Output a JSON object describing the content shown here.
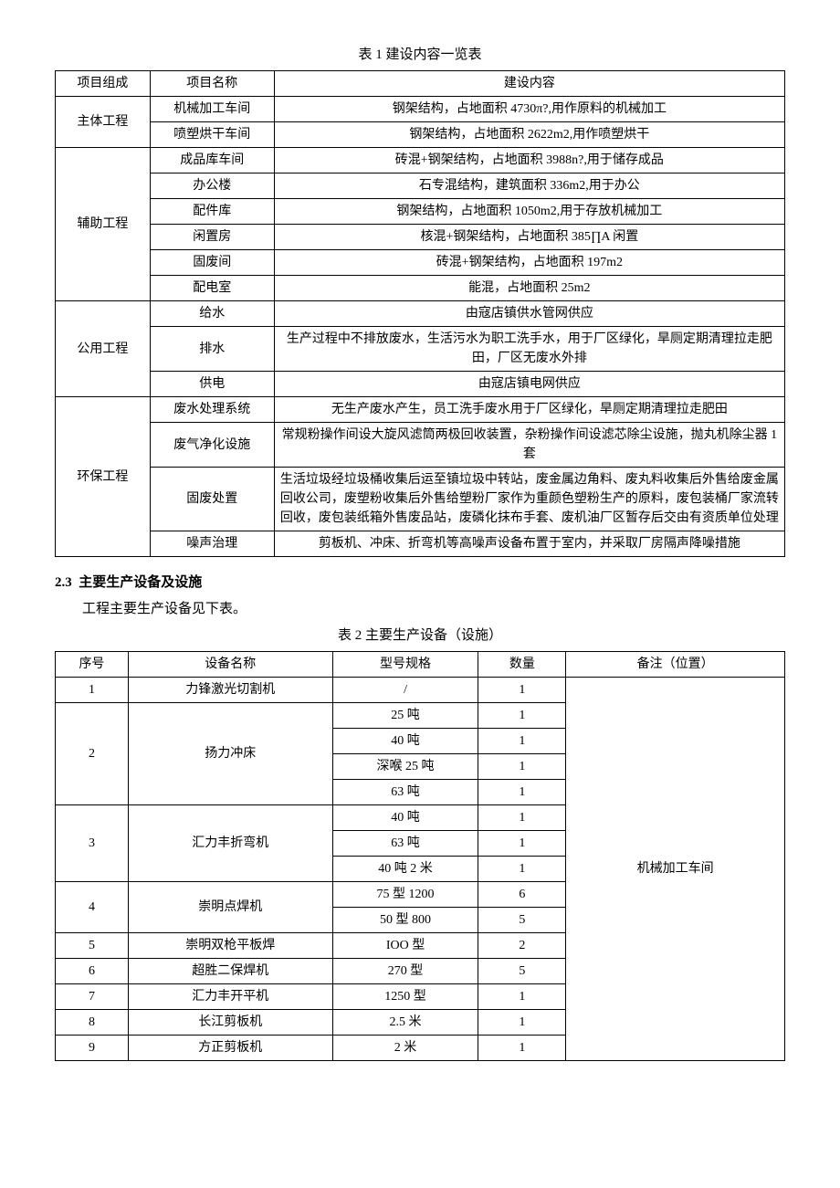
{
  "table1": {
    "caption": "表 1 建设内容一览表",
    "headers": [
      "项目组成",
      "项目名称",
      "建设内容"
    ],
    "groups": [
      {
        "group": "主体工程",
        "rows": [
          {
            "name": "机械加工车间",
            "content": "钢架结构，占地面积 4730π?,用作原料的机械加工"
          },
          {
            "name": "喷塑烘干车间",
            "content": "钢架结构，占地面积 2622m2,用作喷塑烘干"
          }
        ]
      },
      {
        "group": "辅助工程",
        "rows": [
          {
            "name": "成品库车间",
            "content": "砖混+钢架结构，占地面积 3988n?,用于储存成品"
          },
          {
            "name": "办公楼",
            "content": "石专混结构，建筑面积 336m2,用于办公"
          },
          {
            "name": "配件库",
            "content": "钢架结构，占地面积 1050m2,用于存放机械加工"
          },
          {
            "name": "闲置房",
            "content": "核混+钢架结构，占地面积 385∏A 闲置"
          },
          {
            "name": "固废间",
            "content": "砖混+钢架结构，占地面积 197m2"
          },
          {
            "name": "配电室",
            "content": "能混，占地面积 25m2"
          }
        ]
      },
      {
        "group": "公用工程",
        "rows": [
          {
            "name": "给水",
            "content": "由寇店镇供水管网供应"
          },
          {
            "name": "排水",
            "content": "生产过程中不排放废水，生活污水为职工洗手水，用于厂区绿化，旱厕定期清理拉走肥田，厂区无废水外排"
          },
          {
            "name": "供电",
            "content": "由寇店镇电网供应"
          }
        ]
      },
      {
        "group": "环保工程",
        "rows": [
          {
            "name": "废水处理系统",
            "content": "无生产废水产生，员工洗手废水用于厂区绿化，旱厕定期清理拉走肥田"
          },
          {
            "name": "废气净化设施",
            "content": "常规粉操作间设大旋风滤筒两极回收装置，杂粉操作间设滤芯除尘设施，抛丸机除尘器 1 套"
          },
          {
            "name": "固废处置",
            "content": "生活垃圾经垃圾桶收集后运至镇垃圾中转站，废金属边角料、废丸料收集后外售给废金属回收公司，废塑粉收集后外售给塑粉厂家作为重颜色塑粉生产的原料，废包装桶厂家流转回收，废包装纸箱外售废品站，废磷化抹布手套、废机油厂区暂存后交由有资质单位处理"
          },
          {
            "name": "噪声治理",
            "content": "剪板机、冲床、折弯机等高噪声设备布置于室内，并采取厂房隔声降噪措施"
          }
        ]
      }
    ]
  },
  "section": {
    "number": "2.3",
    "title": "主要生产设备及设施",
    "paragraph": "工程主要生产设备见下表。"
  },
  "table2": {
    "caption": "表 2 主要生产设备（设施）",
    "headers": [
      "序号",
      "设备名称",
      "型号规格",
      "数量",
      "备注（位置）"
    ],
    "location": "机械加工车间",
    "rows": [
      {
        "seq": "1",
        "name": "力锋激光切割机",
        "specs": [
          {
            "spec": "/",
            "qty": "1"
          }
        ]
      },
      {
        "seq": "2",
        "name": "扬力冲床",
        "specs": [
          {
            "spec": "25 吨",
            "qty": "1"
          },
          {
            "spec": "40 吨",
            "qty": "1"
          },
          {
            "spec": "深喉 25 吨",
            "qty": "1"
          },
          {
            "spec": "63 吨",
            "qty": "1"
          }
        ]
      },
      {
        "seq": "3",
        "name": "汇力丰折弯机",
        "specs": [
          {
            "spec": "40 吨",
            "qty": "1"
          },
          {
            "spec": "63 吨",
            "qty": "1"
          },
          {
            "spec": "40 吨 2 米",
            "qty": "1"
          }
        ]
      },
      {
        "seq": "4",
        "name": "崇明点焊机",
        "specs": [
          {
            "spec": "75 型 1200",
            "qty": "6"
          },
          {
            "spec": "50 型 800",
            "qty": "5"
          }
        ]
      },
      {
        "seq": "5",
        "name": "崇明双枪平板焊",
        "specs": [
          {
            "spec": "IOO 型",
            "qty": "2"
          }
        ]
      },
      {
        "seq": "6",
        "name": "超胜二保焊机",
        "specs": [
          {
            "spec": "270 型",
            "qty": "5"
          }
        ]
      },
      {
        "seq": "7",
        "name": "汇力丰开平机",
        "specs": [
          {
            "spec": "1250 型",
            "qty": "1"
          }
        ]
      },
      {
        "seq": "8",
        "name": "长江剪板机",
        "specs": [
          {
            "spec": "2.5 米",
            "qty": "1"
          }
        ]
      },
      {
        "seq": "9",
        "name": "方正剪板机",
        "specs": [
          {
            "spec": "2 米",
            "qty": "1"
          }
        ]
      }
    ]
  }
}
